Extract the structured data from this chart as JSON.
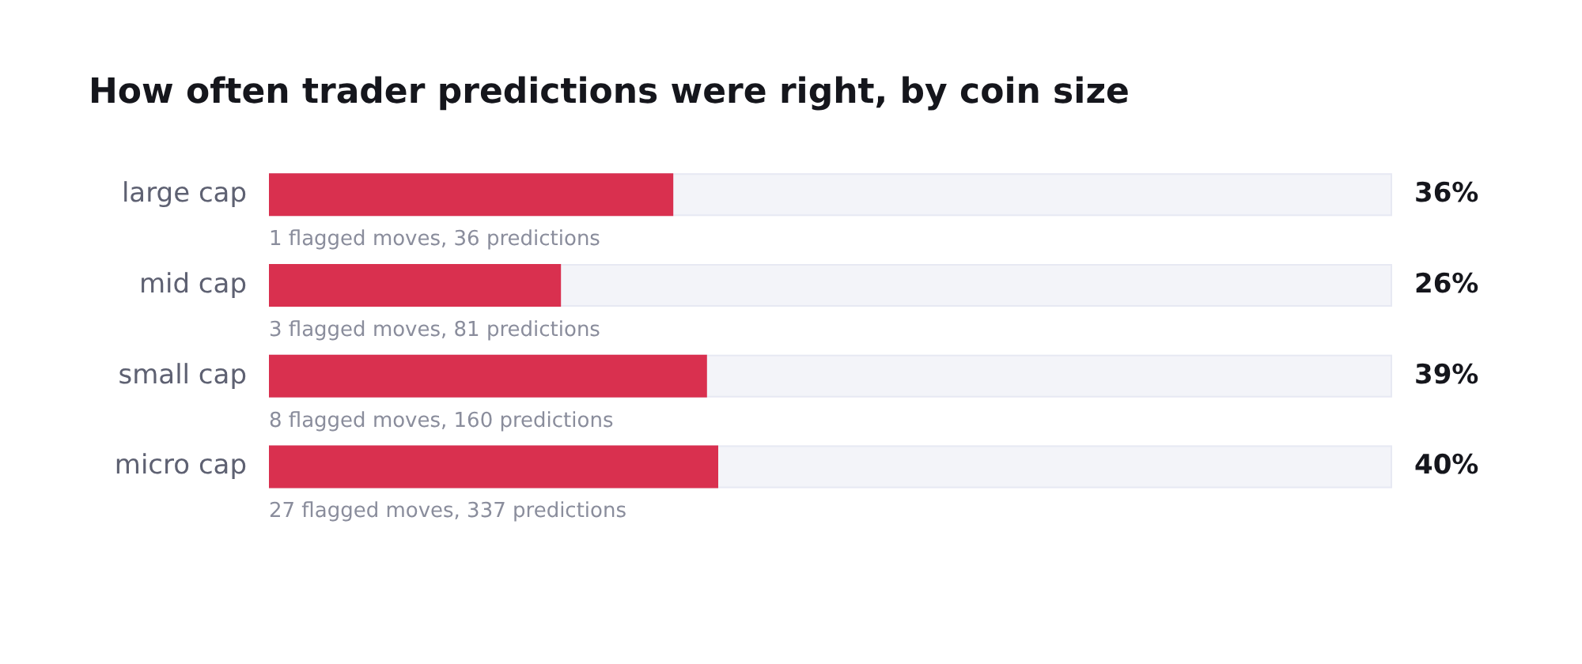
{
  "chart_data": {
    "type": "bar",
    "orientation": "horizontal",
    "title": "How often trader predictions were right, by coin size",
    "categories": [
      "large cap",
      "mid cap",
      "small cap",
      "micro cap"
    ],
    "values": [
      36,
      26,
      39,
      40
    ],
    "color": "#d9304f",
    "value_labels": [
      "36%",
      "26%",
      "39%",
      "40%"
    ],
    "xlim": [
      0,
      100
    ],
    "tick_labels": "y",
    "grid": false,
    "legend": false,
    "annotations": [
      "1 flagged moves, 36 predictions",
      "3 flagged moves, 81 predictions",
      "8 flagged moves, 160 predictions",
      "27 flagged moves, 337 predictions"
    ]
  }
}
